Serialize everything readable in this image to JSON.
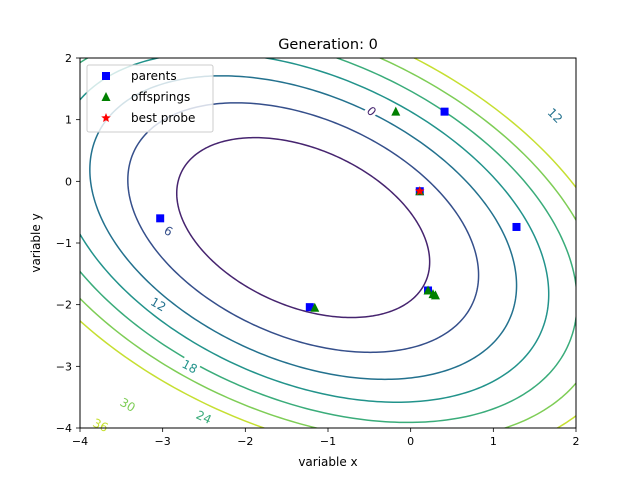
{
  "chart_data": {
    "type": "scatter",
    "title": "Generation: 0",
    "xlabel": "variable x",
    "ylabel": "variable y",
    "xlim": [
      -4,
      2
    ],
    "ylim": [
      -4,
      2
    ],
    "x_ticks": [
      -4,
      -3,
      -2,
      -1,
      0,
      1,
      2
    ],
    "y_ticks": [
      -4,
      -3,
      -2,
      -1,
      0,
      1,
      2
    ],
    "x_tick_labels": [
      "−4",
      "−3",
      "−2",
      "−1",
      "0",
      "1",
      "2"
    ],
    "y_tick_labels": [
      "−4",
      "−3",
      "−2",
      "−1",
      "0",
      "1",
      "2"
    ],
    "grid": false,
    "legend_position": "top-left",
    "contour_levels": [
      0,
      6,
      12,
      18,
      24,
      30,
      36
    ],
    "contour_colors": {
      "0": "#46246f",
      "6": "#354f8b",
      "12": "#23718e",
      "18": "#22938b",
      "24": "#3aac7a",
      "30": "#7ecd56",
      "36": "#c6df31"
    },
    "contour_labels": [
      {
        "text": "0",
        "x": -0.47,
        "y": 1.14,
        "color": "#46246f",
        "angle": 45
      },
      {
        "text": "6",
        "x": -2.93,
        "y": -0.8,
        "color": "#354f8b",
        "angle": 30
      },
      {
        "text": "12",
        "x": -3.05,
        "y": -1.99,
        "color": "#23718e",
        "angle": 30
      },
      {
        "text": "12",
        "x": 1.75,
        "y": 1.07,
        "color": "#23718e",
        "angle": 45
      },
      {
        "text": "18",
        "x": -2.67,
        "y": -3.0,
        "color": "#22938b",
        "angle": 28
      },
      {
        "text": "24",
        "x": -2.5,
        "y": -3.82,
        "color": "#3aac7a",
        "angle": 25
      },
      {
        "text": "30",
        "x": -3.42,
        "y": -3.62,
        "color": "#7ecd56",
        "angle": 30
      },
      {
        "text": "36",
        "x": -3.75,
        "y": -3.95,
        "color": "#c6df31",
        "angle": 25
      }
    ],
    "series": [
      {
        "name": "parents",
        "marker": "square",
        "color": "#0000ff",
        "points": [
          [
            -3.03,
            -0.6
          ],
          [
            0.41,
            1.13
          ],
          [
            1.28,
            -0.74
          ],
          [
            -1.22,
            -2.04
          ],
          [
            0.21,
            -1.77
          ],
          [
            0.11,
            -0.16
          ]
        ]
      },
      {
        "name": "offsprings",
        "marker": "triangle",
        "color": "#008000",
        "points": [
          [
            -0.18,
            1.13
          ],
          [
            -1.16,
            -2.05
          ],
          [
            0.21,
            -1.77
          ],
          [
            0.27,
            -1.83
          ],
          [
            0.3,
            -1.85
          ],
          [
            0.11,
            -0.16
          ]
        ]
      },
      {
        "name": "best probe",
        "marker": "star",
        "color": "#ff0000",
        "points": [
          [
            0.11,
            -0.16
          ]
        ]
      }
    ]
  }
}
